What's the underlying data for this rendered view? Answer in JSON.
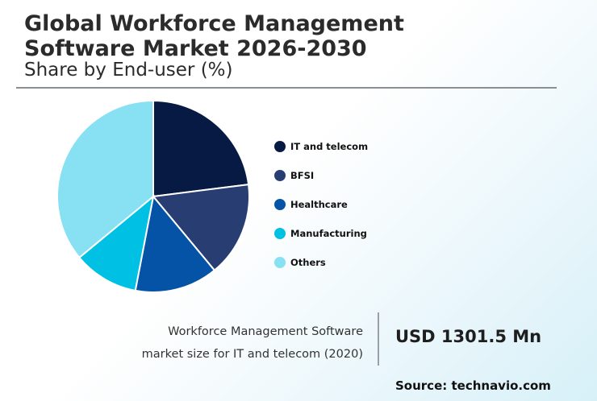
{
  "header": {
    "title_line1": "Global Workforce Management",
    "title_line2": "Software Market 2026-2030",
    "subtitle": "Share by End-user (%)"
  },
  "chart_data": {
    "type": "pie",
    "labels": [
      "IT and telecom",
      "BFSI",
      "Healthcare",
      "Manufacturing",
      "Others"
    ],
    "values": [
      23,
      16,
      14,
      11,
      36
    ],
    "colors": [
      "#061a43",
      "#283e72",
      "#0553a6",
      "#00c0e4",
      "#88e1f3"
    ],
    "legend": "right",
    "start_angle_deg": 0,
    "direction": "clockwise"
  },
  "stat": {
    "desc_line1": "Workforce Management Software",
    "desc_line2": "market size for IT and telecom (2020)",
    "value": "USD 1301.5 Mn"
  },
  "source": "Source: technavio.com"
}
